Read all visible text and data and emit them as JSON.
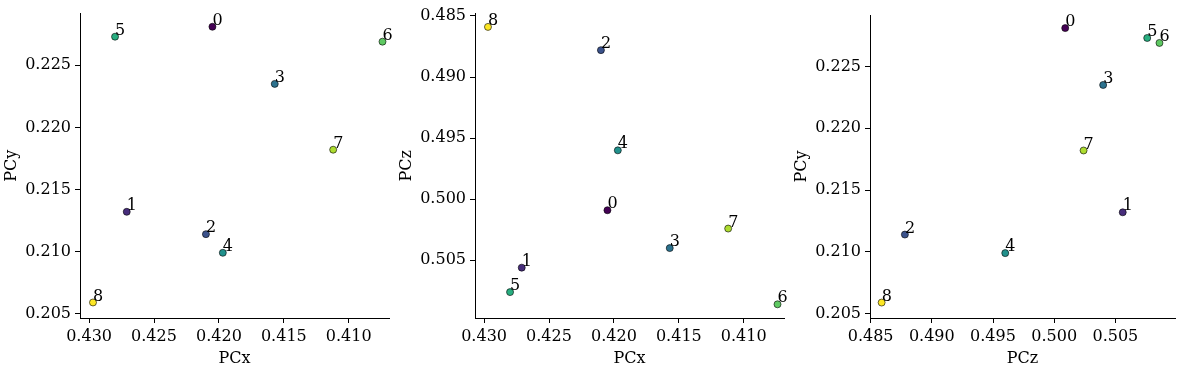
{
  "chart_data": [
    {
      "type": "scatter",
      "xlabel": "PCx",
      "ylabel": "PCy",
      "marker": "circle",
      "grid": false,
      "xlim": [
        0.4307,
        0.4069
      ],
      "ylim": [
        0.20465,
        0.22916
      ],
      "xticks": [
        {
          "value": 0.43,
          "label": "0.430"
        },
        {
          "value": 0.425,
          "label": "0.425"
        },
        {
          "value": 0.42,
          "label": "0.420"
        },
        {
          "value": 0.415,
          "label": "0.415"
        },
        {
          "value": 0.41,
          "label": "0.410"
        }
      ],
      "yticks": [
        {
          "value": 0.205,
          "label": "0.205"
        },
        {
          "value": 0.21,
          "label": "0.210"
        },
        {
          "value": 0.215,
          "label": "0.215"
        },
        {
          "value": 0.22,
          "label": "0.220"
        },
        {
          "value": 0.225,
          "label": "0.225"
        }
      ],
      "x": [
        0.4205,
        0.4271,
        0.421,
        0.4157,
        0.4197,
        0.428,
        0.4074,
        0.4112,
        0.4297
      ],
      "values": [
        0.2281,
        0.2132,
        0.2114,
        0.2235,
        0.2099,
        0.2273,
        0.2269,
        0.2182,
        0.2059
      ],
      "colors": [
        "#440154",
        "#472d7b",
        "#3b528b",
        "#2c728e",
        "#21918c",
        "#28ae80",
        "#5ec962",
        "#addc30",
        "#fde725"
      ],
      "annotations": [
        {
          "text": "0",
          "x": 0.4205,
          "y": 0.2281
        },
        {
          "text": "1",
          "x": 0.4271,
          "y": 0.2132
        },
        {
          "text": "2",
          "x": 0.421,
          "y": 0.2114
        },
        {
          "text": "3",
          "x": 0.4157,
          "y": 0.2235
        },
        {
          "text": "4",
          "x": 0.4197,
          "y": 0.2099
        },
        {
          "text": "5",
          "x": 0.428,
          "y": 0.2273
        },
        {
          "text": "6",
          "x": 0.4074,
          "y": 0.2269
        },
        {
          "text": "7",
          "x": 0.4112,
          "y": 0.2182
        },
        {
          "text": "8",
          "x": 0.4297,
          "y": 0.2059
        }
      ]
    },
    {
      "type": "scatter",
      "xlabel": "PCx",
      "ylabel": "PCz",
      "marker": "circle",
      "grid": false,
      "xlim": [
        0.4307,
        0.4069
      ],
      "ylim": [
        0.50972,
        0.48481
      ],
      "xticks": [
        {
          "value": 0.43,
          "label": "0.430"
        },
        {
          "value": 0.425,
          "label": "0.425"
        },
        {
          "value": 0.42,
          "label": "0.420"
        },
        {
          "value": 0.415,
          "label": "0.415"
        },
        {
          "value": 0.41,
          "label": "0.410"
        }
      ],
      "yticks": [
        {
          "value": 0.485,
          "label": "0.485"
        },
        {
          "value": 0.49,
          "label": "0.490"
        },
        {
          "value": 0.495,
          "label": "0.495"
        },
        {
          "value": 0.5,
          "label": "0.500"
        },
        {
          "value": 0.505,
          "label": "0.505"
        }
      ],
      "x": [
        0.4205,
        0.4271,
        0.421,
        0.4157,
        0.4197,
        0.428,
        0.4074,
        0.4112,
        0.4297
      ],
      "values": [
        0.5009,
        0.5056,
        0.4878,
        0.504,
        0.496,
        0.5076,
        0.5086,
        0.5024,
        0.4859
      ],
      "colors": [
        "#440154",
        "#472d7b",
        "#3b528b",
        "#2c728e",
        "#21918c",
        "#28ae80",
        "#5ec962",
        "#addc30",
        "#fde725"
      ],
      "annotations": [
        {
          "text": "0",
          "x": 0.4205,
          "y": 0.5009
        },
        {
          "text": "1",
          "x": 0.4271,
          "y": 0.5056
        },
        {
          "text": "2",
          "x": 0.421,
          "y": 0.4878
        },
        {
          "text": "3",
          "x": 0.4157,
          "y": 0.504
        },
        {
          "text": "4",
          "x": 0.4197,
          "y": 0.496
        },
        {
          "text": "5",
          "x": 0.428,
          "y": 0.5076
        },
        {
          "text": "6",
          "x": 0.4074,
          "y": 0.5086
        },
        {
          "text": "7",
          "x": 0.4112,
          "y": 0.5024
        },
        {
          "text": "8",
          "x": 0.4297,
          "y": 0.4859
        }
      ]
    },
    {
      "type": "scatter",
      "xlabel": "PCz",
      "ylabel": "PCy",
      "marker": "circle",
      "grid": false,
      "xlim": [
        0.48495,
        0.50987
      ],
      "ylim": [
        0.20465,
        0.22916
      ],
      "xticks": [
        {
          "value": 0.485,
          "label": "0.485"
        },
        {
          "value": 0.49,
          "label": "0.490"
        },
        {
          "value": 0.495,
          "label": "0.495"
        },
        {
          "value": 0.5,
          "label": "0.500"
        },
        {
          "value": 0.505,
          "label": "0.505"
        }
      ],
      "yticks": [
        {
          "value": 0.205,
          "label": "0.205"
        },
        {
          "value": 0.21,
          "label": "0.210"
        },
        {
          "value": 0.215,
          "label": "0.215"
        },
        {
          "value": 0.22,
          "label": "0.220"
        },
        {
          "value": 0.225,
          "label": "0.225"
        }
      ],
      "x": [
        0.5009,
        0.5056,
        0.4878,
        0.504,
        0.496,
        0.5076,
        0.5086,
        0.5024,
        0.4859
      ],
      "values": [
        0.2281,
        0.2132,
        0.2114,
        0.2235,
        0.2099,
        0.2273,
        0.2269,
        0.2182,
        0.2059
      ],
      "colors": [
        "#440154",
        "#472d7b",
        "#3b528b",
        "#2c728e",
        "#21918c",
        "#28ae80",
        "#5ec962",
        "#addc30",
        "#fde725"
      ],
      "annotations": [
        {
          "text": "0",
          "x": 0.5009,
          "y": 0.2281
        },
        {
          "text": "1",
          "x": 0.5056,
          "y": 0.2132
        },
        {
          "text": "2",
          "x": 0.4878,
          "y": 0.2114
        },
        {
          "text": "3",
          "x": 0.504,
          "y": 0.2235
        },
        {
          "text": "4",
          "x": 0.496,
          "y": 0.2099
        },
        {
          "text": "5",
          "x": 0.5076,
          "y": 0.2273
        },
        {
          "text": "6",
          "x": 0.5086,
          "y": 0.2269
        },
        {
          "text": "7",
          "x": 0.5024,
          "y": 0.2182
        },
        {
          "text": "8",
          "x": 0.4859,
          "y": 0.2059
        }
      ]
    }
  ]
}
